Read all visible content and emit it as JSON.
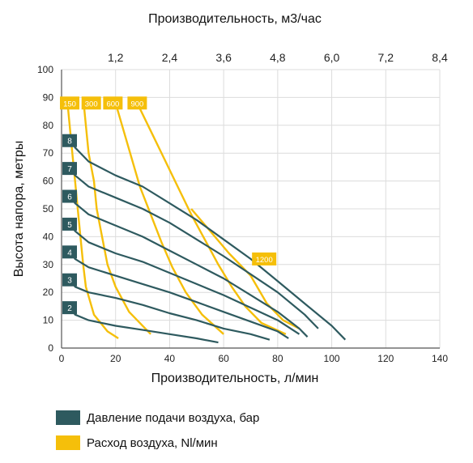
{
  "chart_data": {
    "type": "line",
    "xlabel": "Производительность, л/мин",
    "x2label": "Производительность, м3/час",
    "ylabel": "Высота напора, метры",
    "xlim": [
      0,
      140
    ],
    "ylim": [
      0,
      100
    ],
    "x_ticks": [
      "0",
      "20",
      "40",
      "60",
      "80",
      "100",
      "120",
      "140"
    ],
    "x2_ticks": [
      "1,2",
      "2,4",
      "3,6",
      "4,8",
      "6,0",
      "7,2",
      "8,4"
    ],
    "y_ticks": [
      "0",
      "10",
      "20",
      "30",
      "40",
      "50",
      "60",
      "70",
      "80",
      "90",
      "100"
    ],
    "grid": true,
    "colors": {
      "pressure": "#2e5a5f",
      "air": "#f5bf0a",
      "grid": "#dcdcdc",
      "axis": "#555555"
    },
    "pressure_series": [
      {
        "name": "2",
        "points": [
          [
            3,
            15
          ],
          [
            5,
            12
          ],
          [
            10,
            10
          ],
          [
            20,
            8
          ],
          [
            30,
            6.5
          ],
          [
            40,
            5
          ],
          [
            50,
            3.5
          ],
          [
            58,
            2
          ]
        ]
      },
      {
        "name": "3",
        "points": [
          [
            3,
            25
          ],
          [
            5,
            22
          ],
          [
            10,
            20
          ],
          [
            20,
            18
          ],
          [
            30,
            15.5
          ],
          [
            40,
            12.5
          ],
          [
            50,
            10
          ],
          [
            60,
            7
          ],
          [
            70,
            5
          ],
          [
            77,
            3
          ]
        ]
      },
      {
        "name": "4",
        "points": [
          [
            3,
            35
          ],
          [
            5,
            32
          ],
          [
            10,
            29
          ],
          [
            20,
            26
          ],
          [
            30,
            23
          ],
          [
            40,
            20
          ],
          [
            50,
            16.5
          ],
          [
            60,
            13
          ],
          [
            70,
            9.5
          ],
          [
            80,
            6
          ],
          [
            84,
            3.5
          ]
        ]
      },
      {
        "name": "5",
        "points": [
          [
            3,
            45
          ],
          [
            5,
            42
          ],
          [
            10,
            38
          ],
          [
            20,
            34
          ],
          [
            30,
            31
          ],
          [
            40,
            27
          ],
          [
            50,
            23
          ],
          [
            60,
            19
          ],
          [
            70,
            14.5
          ],
          [
            80,
            10
          ],
          [
            88,
            5
          ]
        ]
      },
      {
        "name": "6",
        "points": [
          [
            3,
            55
          ],
          [
            5,
            52
          ],
          [
            10,
            48
          ],
          [
            20,
            44
          ],
          [
            30,
            40
          ],
          [
            40,
            35
          ],
          [
            50,
            30
          ],
          [
            60,
            25
          ],
          [
            70,
            19
          ],
          [
            80,
            13
          ],
          [
            88,
            7
          ],
          [
            91,
            4
          ]
        ]
      },
      {
        "name": "7",
        "points": [
          [
            3,
            65
          ],
          [
            5,
            62
          ],
          [
            10,
            58
          ],
          [
            20,
            54
          ],
          [
            30,
            50
          ],
          [
            40,
            45
          ],
          [
            50,
            39
          ],
          [
            60,
            33
          ],
          [
            70,
            26.5
          ],
          [
            80,
            20
          ],
          [
            90,
            12
          ],
          [
            95,
            7
          ]
        ]
      },
      {
        "name": "8",
        "points": [
          [
            3,
            75
          ],
          [
            5,
            72
          ],
          [
            10,
            67
          ],
          [
            20,
            62
          ],
          [
            30,
            58
          ],
          [
            40,
            52
          ],
          [
            50,
            46
          ],
          [
            60,
            39
          ],
          [
            70,
            32
          ],
          [
            80,
            24
          ],
          [
            90,
            16
          ],
          [
            100,
            8
          ],
          [
            105,
            3
          ]
        ]
      }
    ],
    "air_series": [
      {
        "name": "150",
        "points": [
          [
            2,
            90
          ],
          [
            3,
            80
          ],
          [
            4,
            70
          ],
          [
            5,
            60
          ],
          [
            6,
            50
          ],
          [
            7,
            40
          ],
          [
            8,
            30
          ],
          [
            9,
            22
          ],
          [
            12,
            12
          ],
          [
            17,
            6
          ],
          [
            21,
            3.5
          ]
        ]
      },
      {
        "name": "300",
        "points": [
          [
            8,
            90
          ],
          [
            9,
            80
          ],
          [
            10,
            70
          ],
          [
            12,
            60
          ],
          [
            13,
            50
          ],
          [
            15,
            40
          ],
          [
            17,
            30
          ],
          [
            20,
            22
          ],
          [
            25,
            13
          ],
          [
            33,
            5
          ]
        ]
      },
      {
        "name": "600",
        "points": [
          [
            20,
            88
          ],
          [
            23,
            78
          ],
          [
            26,
            68
          ],
          [
            29,
            58
          ],
          [
            33,
            48
          ],
          [
            37,
            38
          ],
          [
            41,
            29
          ],
          [
            46,
            20
          ],
          [
            52,
            12
          ],
          [
            60,
            5
          ]
        ]
      },
      {
        "name": "900",
        "points": [
          [
            28,
            88
          ],
          [
            33,
            78
          ],
          [
            38,
            68
          ],
          [
            43,
            58
          ],
          [
            48,
            48
          ],
          [
            53,
            39
          ],
          [
            58,
            30
          ],
          [
            63,
            22
          ],
          [
            68,
            15
          ],
          [
            74,
            9
          ],
          [
            83,
            5
          ]
        ]
      },
      {
        "name": "1200",
        "points": [
          [
            48,
            50
          ],
          [
            55,
            42
          ],
          [
            62,
            34
          ],
          [
            70,
            26
          ],
          [
            76,
            16
          ],
          [
            82,
            10
          ],
          [
            88,
            7
          ]
        ]
      }
    ],
    "label_positions": {
      "pressure": [
        [
          3,
          14.5
        ],
        [
          3,
          24.5
        ],
        [
          3,
          34.5
        ],
        [
          3,
          44.5
        ],
        [
          3,
          54.5
        ],
        [
          3,
          64.5
        ],
        [
          3,
          74.5
        ]
      ],
      "air": [
        [
          3,
          88
        ],
        [
          11,
          88
        ],
        [
          19,
          88
        ],
        [
          28,
          88
        ],
        [
          75,
          32
        ]
      ]
    }
  },
  "legend": {
    "pressure_label": "Давление подачи воздуха, бар",
    "air_label": "Расход воздуха, Nl/мин"
  }
}
